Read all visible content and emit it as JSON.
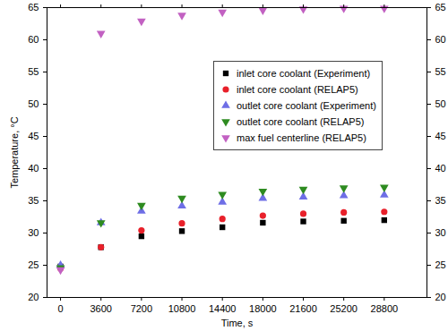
{
  "chart_data": {
    "type": "scatter",
    "x_label": "Time, s",
    "y_label": "Temperature, °C",
    "xlim": [
      -1200,
      32600
    ],
    "xticks": [
      0,
      3600,
      7200,
      10800,
      14400,
      18000,
      21600,
      25200,
      28800
    ],
    "ylim": [
      20,
      65
    ],
    "yticks": [
      20,
      25,
      30,
      35,
      40,
      45,
      50,
      55,
      60,
      65
    ],
    "y2lim": [
      20,
      65
    ],
    "y2ticks": [
      20,
      25,
      30,
      35,
      40,
      45,
      50,
      55,
      60,
      65
    ],
    "grid": false,
    "legend": "right",
    "x": [
      0,
      3600,
      7200,
      10800,
      14400,
      18000,
      21600,
      25200,
      28800
    ],
    "series": [
      {
        "name": "inlet core coolant (Experiment)",
        "color": "#000000",
        "marker": "square",
        "values": [
          24.8,
          27.8,
          29.5,
          30.3,
          30.9,
          31.6,
          31.8,
          31.9,
          32.0
        ]
      },
      {
        "name": "inlet core coolant (RELAP5)",
        "color": "#e8202a",
        "marker": "circle",
        "values": [
          24.5,
          27.8,
          30.4,
          31.5,
          32.2,
          32.7,
          33.0,
          33.2,
          33.3
        ]
      },
      {
        "name": "outlet core coolant (Experiment)",
        "color": "#6e6ee6",
        "marker": "triangle",
        "values": [
          25.0,
          31.6,
          33.4,
          34.2,
          34.8,
          35.4,
          35.6,
          35.8,
          35.9
        ]
      },
      {
        "name": "outlet core coolant (RELAP5)",
        "color": "#2e8b20",
        "marker": "triangle-down",
        "values": [
          24.6,
          31.6,
          34.3,
          35.4,
          36.0,
          36.5,
          36.8,
          37.0,
          37.1
        ]
      },
      {
        "name": "max fuel centerline (RELAP5)",
        "color": "#c261c2",
        "marker": "triangle-down",
        "values": [
          24.3,
          61.0,
          62.9,
          63.8,
          64.3,
          64.6,
          64.8,
          64.9,
          64.9
        ]
      }
    ]
  }
}
